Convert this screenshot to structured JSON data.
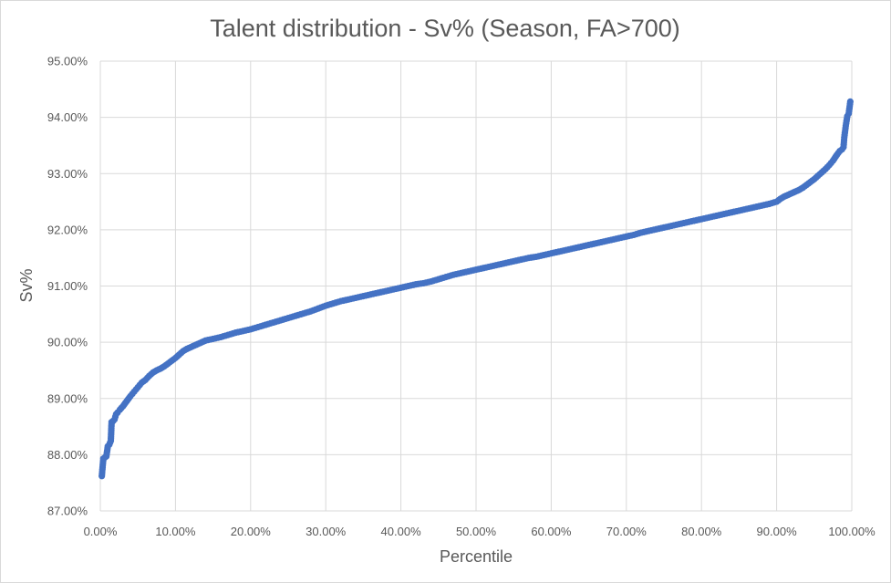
{
  "chart_data": {
    "type": "scatter",
    "title": "Talent distribution - Sv% (Season, FA>700)",
    "xlabel": "Percentile",
    "ylabel": "Sv%",
    "xlim": [
      0,
      1
    ],
    "ylim": [
      0.87,
      0.95
    ],
    "x_ticks": [
      0,
      0.1,
      0.2,
      0.3,
      0.4,
      0.5,
      0.6,
      0.7,
      0.8,
      0.9,
      1.0
    ],
    "x_tick_labels": [
      "0.00%",
      "10.00%",
      "20.00%",
      "30.00%",
      "40.00%",
      "50.00%",
      "60.00%",
      "70.00%",
      "80.00%",
      "90.00%",
      "100.00%"
    ],
    "y_ticks": [
      0.87,
      0.88,
      0.89,
      0.9,
      0.91,
      0.92,
      0.93,
      0.94,
      0.95
    ],
    "y_tick_labels": [
      "87.00%",
      "88.00%",
      "89.00%",
      "90.00%",
      "91.00%",
      "92.00%",
      "93.00%",
      "94.00%",
      "95.00%"
    ],
    "grid": true,
    "legend": "none",
    "series": [
      {
        "marker_color": "#4472C4",
        "points": [
          [
            0.002,
            0.8762
          ],
          [
            0.004,
            0.8793
          ],
          [
            0.006,
            0.8795
          ],
          [
            0.008,
            0.8797
          ],
          [
            0.01,
            0.8815
          ],
          [
            0.012,
            0.8818
          ],
          [
            0.014,
            0.8825
          ],
          [
            0.015,
            0.8858
          ],
          [
            0.017,
            0.886
          ],
          [
            0.019,
            0.8863
          ],
          [
            0.021,
            0.8872
          ],
          [
            0.023,
            0.8875
          ],
          [
            0.026,
            0.888
          ],
          [
            0.03,
            0.8886
          ],
          [
            0.035,
            0.8895
          ],
          [
            0.04,
            0.8904
          ],
          [
            0.045,
            0.8912
          ],
          [
            0.05,
            0.892
          ],
          [
            0.055,
            0.8928
          ],
          [
            0.06,
            0.8933
          ],
          [
            0.065,
            0.894
          ],
          [
            0.07,
            0.8946
          ],
          [
            0.075,
            0.895
          ],
          [
            0.08,
            0.8953
          ],
          [
            0.085,
            0.8957
          ],
          [
            0.09,
            0.8962
          ],
          [
            0.095,
            0.8967
          ],
          [
            0.1,
            0.8972
          ],
          [
            0.105,
            0.8978
          ],
          [
            0.11,
            0.8984
          ],
          [
            0.115,
            0.8988
          ],
          [
            0.12,
            0.8991
          ],
          [
            0.125,
            0.8994
          ],
          [
            0.13,
            0.8997
          ],
          [
            0.135,
            0.9
          ],
          [
            0.14,
            0.9003
          ],
          [
            0.15,
            0.9006
          ],
          [
            0.16,
            0.9009
          ],
          [
            0.17,
            0.9013
          ],
          [
            0.18,
            0.9017
          ],
          [
            0.19,
            0.902
          ],
          [
            0.2,
            0.9023
          ],
          [
            0.21,
            0.9027
          ],
          [
            0.22,
            0.9031
          ],
          [
            0.23,
            0.9035
          ],
          [
            0.24,
            0.9039
          ],
          [
            0.25,
            0.9043
          ],
          [
            0.26,
            0.9047
          ],
          [
            0.27,
            0.9051
          ],
          [
            0.28,
            0.9055
          ],
          [
            0.29,
            0.906
          ],
          [
            0.3,
            0.9065
          ],
          [
            0.31,
            0.9069
          ],
          [
            0.32,
            0.9073
          ],
          [
            0.33,
            0.9076
          ],
          [
            0.34,
            0.9079
          ],
          [
            0.35,
            0.9082
          ],
          [
            0.36,
            0.9085
          ],
          [
            0.37,
            0.9088
          ],
          [
            0.38,
            0.9091
          ],
          [
            0.39,
            0.9094
          ],
          [
            0.4,
            0.9097
          ],
          [
            0.41,
            0.91
          ],
          [
            0.42,
            0.9103
          ],
          [
            0.43,
            0.9105
          ],
          [
            0.44,
            0.9108
          ],
          [
            0.45,
            0.9112
          ],
          [
            0.46,
            0.9116
          ],
          [
            0.47,
            0.912
          ],
          [
            0.48,
            0.9123
          ],
          [
            0.49,
            0.9126
          ],
          [
            0.5,
            0.9129
          ],
          [
            0.51,
            0.9132
          ],
          [
            0.52,
            0.9135
          ],
          [
            0.53,
            0.9138
          ],
          [
            0.54,
            0.9141
          ],
          [
            0.55,
            0.9144
          ],
          [
            0.56,
            0.9147
          ],
          [
            0.57,
            0.915
          ],
          [
            0.58,
            0.9152
          ],
          [
            0.59,
            0.9155
          ],
          [
            0.6,
            0.9158
          ],
          [
            0.61,
            0.9161
          ],
          [
            0.62,
            0.9164
          ],
          [
            0.63,
            0.9167
          ],
          [
            0.64,
            0.917
          ],
          [
            0.65,
            0.9173
          ],
          [
            0.66,
            0.9176
          ],
          [
            0.67,
            0.9179
          ],
          [
            0.68,
            0.9182
          ],
          [
            0.69,
            0.9185
          ],
          [
            0.7,
            0.9188
          ],
          [
            0.71,
            0.9191
          ],
          [
            0.72,
            0.9195
          ],
          [
            0.73,
            0.9198
          ],
          [
            0.74,
            0.9201
          ],
          [
            0.75,
            0.9204
          ],
          [
            0.76,
            0.9207
          ],
          [
            0.77,
            0.921
          ],
          [
            0.78,
            0.9213
          ],
          [
            0.79,
            0.9216
          ],
          [
            0.8,
            0.9219
          ],
          [
            0.81,
            0.9222
          ],
          [
            0.82,
            0.9225
          ],
          [
            0.83,
            0.9228
          ],
          [
            0.84,
            0.9231
          ],
          [
            0.85,
            0.9234
          ],
          [
            0.86,
            0.9237
          ],
          [
            0.87,
            0.924
          ],
          [
            0.88,
            0.9243
          ],
          [
            0.89,
            0.9246
          ],
          [
            0.9,
            0.925
          ],
          [
            0.905,
            0.9255
          ],
          [
            0.91,
            0.9259
          ],
          [
            0.915,
            0.9262
          ],
          [
            0.92,
            0.9265
          ],
          [
            0.925,
            0.9268
          ],
          [
            0.93,
            0.9271
          ],
          [
            0.935,
            0.9275
          ],
          [
            0.94,
            0.928
          ],
          [
            0.945,
            0.9285
          ],
          [
            0.95,
            0.929
          ],
          [
            0.955,
            0.9296
          ],
          [
            0.96,
            0.9302
          ],
          [
            0.965,
            0.9308
          ],
          [
            0.97,
            0.9315
          ],
          [
            0.975,
            0.9323
          ],
          [
            0.98,
            0.9333
          ],
          [
            0.984,
            0.934
          ],
          [
            0.987,
            0.9343
          ],
          [
            0.989,
            0.9347
          ],
          [
            0.99,
            0.9364
          ],
          [
            0.992,
            0.9385
          ],
          [
            0.994,
            0.9402
          ],
          [
            0.996,
            0.9407
          ],
          [
            0.998,
            0.9428
          ]
        ]
      }
    ]
  }
}
